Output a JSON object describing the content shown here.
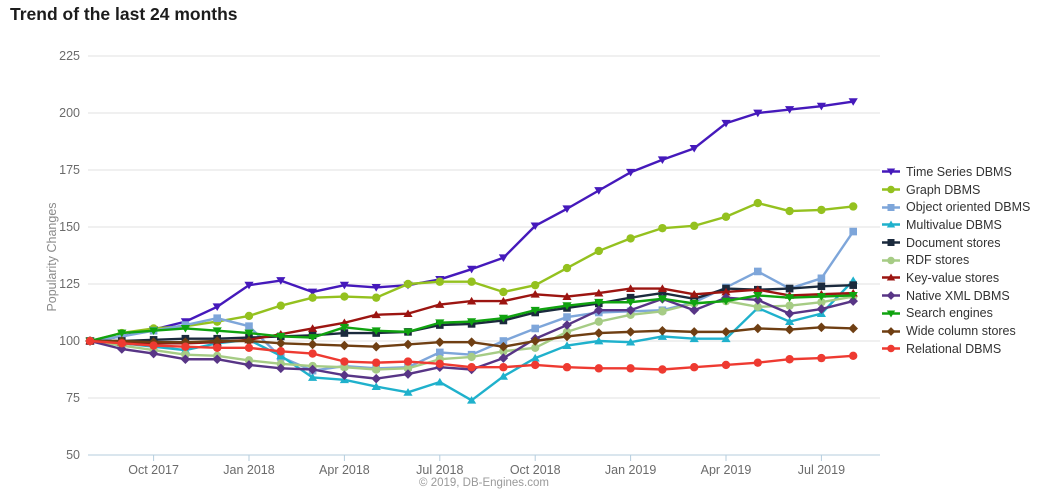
{
  "page_title": "Trend of the last 24 months",
  "footer": "© 2019, DB-Engines.com",
  "colors": {
    "grid": "#e2e2e2",
    "axis": "#b5cede",
    "tick_label": "#6b6b6b",
    "title_text": "#1c1c1c",
    "legend_text": "#333333",
    "footer_text": "#9a9a9a",
    "ylabel_text": "#8a8a8a"
  },
  "chart_data": {
    "type": "line",
    "title": "Trend of the last 24 months",
    "xlabel": "",
    "ylabel": "Popularity Changes",
    "ylim": [
      50,
      225
    ],
    "grid": true,
    "legend_position": "right",
    "y_ticks": [
      225,
      200,
      175,
      150,
      125,
      100,
      75,
      50
    ],
    "x": [
      "Aug 2017",
      "Sep 2017",
      "Oct 2017",
      "Nov 2017",
      "Dec 2017",
      "Jan 2018",
      "Feb 2018",
      "Mar 2018",
      "Apr 2018",
      "May 2018",
      "Jun 2018",
      "Jul 2018",
      "Aug 2018",
      "Sep 2018",
      "Oct 2018",
      "Nov 2018",
      "Dec 2018",
      "Jan 2019",
      "Feb 2019",
      "Mar 2019",
      "Apr 2019",
      "May 2019",
      "Jun 2019",
      "Jul 2019",
      "Aug 2019"
    ],
    "x_tick_labels": [
      "Oct 2017",
      "Jan 2018",
      "Apr 2018",
      "Jul 2018",
      "Oct 2018",
      "Jan 2019",
      "Apr 2019",
      "Jul 2019"
    ],
    "x_tick_indices": [
      2,
      5,
      8,
      11,
      14,
      17,
      20,
      23
    ],
    "series": [
      {
        "name": "Time Series DBMS",
        "color": "#4519bb",
        "marker": "triangle-down",
        "values": [
          100,
          102,
          105,
          108.5,
          115,
          124.5,
          126.5,
          121.5,
          124.5,
          123.5,
          124.5,
          127,
          131.5,
          136.5,
          150.5,
          158,
          166,
          174,
          179.5,
          184.5,
          195.5,
          200,
          201.5,
          203,
          205
        ]
      },
      {
        "name": "Graph DBMS",
        "color": "#94c11f",
        "marker": "circle",
        "values": [
          100,
          103.5,
          105.5,
          106.5,
          108.5,
          111,
          115.5,
          119,
          119.5,
          119,
          125,
          126,
          126,
          121.5,
          124.5,
          132,
          139.5,
          145,
          149.5,
          150.5,
          154.5,
          160.5,
          157,
          157.5,
          159
        ]
      },
      {
        "name": "Object oriented DBMS",
        "color": "#7ea6da",
        "marker": "square",
        "values": [
          100,
          102,
          104.5,
          107,
          110,
          106.5,
          93,
          87,
          89,
          88,
          88.5,
          95,
          94,
          100,
          105.5,
          110.5,
          112.5,
          113,
          113.5,
          117,
          123.5,
          130.5,
          123,
          127.5,
          148
        ]
      },
      {
        "name": "Multivalue DBMS",
        "color": "#1fb1cc",
        "marker": "triangle-up",
        "values": [
          100,
          99,
          97.5,
          96,
          99,
          100.5,
          93.5,
          84,
          83,
          80,
          77.5,
          82,
          74,
          84.5,
          92.5,
          98,
          100,
          99.5,
          102,
          101,
          101,
          114.5,
          108.5,
          112,
          126.5
        ]
      },
      {
        "name": "Document stores",
        "color": "#1b2a3d",
        "marker": "square",
        "values": [
          100,
          100,
          100.5,
          101,
          101,
          101.5,
          102,
          102.5,
          103.5,
          103.5,
          104,
          107,
          107.5,
          109,
          112.5,
          114.5,
          116.5,
          119,
          121,
          118.5,
          123,
          122.5,
          123,
          124,
          124.5
        ]
      },
      {
        "name": "RDF stores",
        "color": "#a6cc85",
        "marker": "circle",
        "values": [
          100,
          98,
          96,
          94,
          93.5,
          91.5,
          90,
          89,
          88.5,
          87.5,
          88,
          92,
          93,
          95.5,
          97,
          104,
          108.5,
          111.5,
          113,
          116.5,
          117.5,
          115,
          115.5,
          117,
          119.5
        ]
      },
      {
        "name": "Key-value stores",
        "color": "#9c1511",
        "marker": "triangle-up",
        "values": [
          100,
          99.5,
          99,
          99,
          99.5,
          100.5,
          103,
          105.5,
          108,
          111.5,
          112,
          116,
          117.5,
          117.5,
          120.5,
          119.5,
          121,
          123,
          123,
          120.5,
          121.5,
          122.5,
          120,
          120.5,
          121
        ]
      },
      {
        "name": "Native XML DBMS",
        "color": "#583586",
        "marker": "diamond",
        "values": [
          100,
          96.5,
          94.5,
          92,
          92,
          89.5,
          88,
          87.5,
          85,
          83.5,
          85.5,
          88.5,
          87.5,
          92.5,
          101,
          107,
          113.5,
          113.5,
          118.5,
          113.5,
          119,
          118,
          112,
          114,
          117.5
        ]
      },
      {
        "name": "Search engines",
        "color": "#10a310",
        "marker": "triangle-down",
        "values": [
          100,
          103.5,
          104.5,
          105.5,
          104.5,
          103.5,
          102,
          101.5,
          106,
          104.5,
          104,
          108,
          108.5,
          110,
          113.5,
          115.5,
          117,
          117,
          118.5,
          116.5,
          117.5,
          120,
          119,
          119.5,
          120
        ]
      },
      {
        "name": "Wide column stores",
        "color": "#6f3f13",
        "marker": "diamond",
        "values": [
          100,
          100,
          99.5,
          99.5,
          100,
          100,
          99,
          98.5,
          98,
          97.5,
          98.5,
          99.5,
          99.5,
          97.5,
          100,
          102,
          103.5,
          104,
          104.5,
          104,
          104,
          105.5,
          105,
          106,
          105.5
        ]
      },
      {
        "name": "Relational DBMS",
        "color": "#ee3a31",
        "marker": "circle",
        "values": [
          100,
          99,
          98,
          97.5,
          97,
          97,
          95.5,
          94.5,
          91,
          90.5,
          91,
          90,
          88.5,
          88.5,
          89.5,
          88.5,
          88,
          88,
          87.5,
          88.5,
          89.5,
          90.5,
          92,
          92.5,
          93.5
        ]
      }
    ]
  }
}
